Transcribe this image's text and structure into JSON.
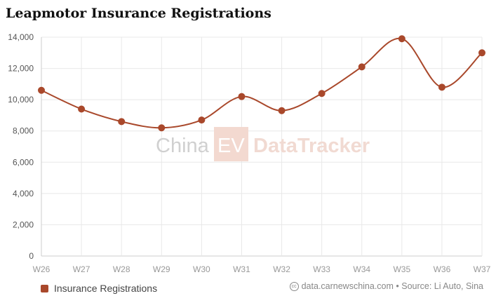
{
  "chart_data": {
    "type": "line",
    "title": "Leapmotor Insurance Registrations",
    "categories": [
      "W26",
      "W27",
      "W28",
      "W29",
      "W30",
      "W31",
      "W32",
      "W33",
      "W34",
      "W35",
      "W36",
      "W37"
    ],
    "series": [
      {
        "name": "Insurance Registrations",
        "color": "#a9482b",
        "values": [
          10600,
          9400,
          8600,
          8200,
          8700,
          10200,
          9300,
          10400,
          12100,
          13900,
          10800,
          13000
        ]
      }
    ],
    "ylim": [
      0,
      14000
    ],
    "yticks": [
      0,
      2000,
      4000,
      6000,
      8000,
      10000,
      12000,
      14000
    ],
    "ytick_labels": [
      "0",
      "2,000",
      "4,000",
      "6,000",
      "8,000",
      "10,000",
      "12,000",
      "14,000"
    ],
    "grid": true,
    "legend": "bottom-left"
  },
  "watermark": {
    "china": "China",
    "ev": "EV",
    "tracker": "DataTracker"
  },
  "credit": {
    "icon": "cc",
    "text": "data.carnewschina.com • Source: Li Auto, Sina"
  }
}
